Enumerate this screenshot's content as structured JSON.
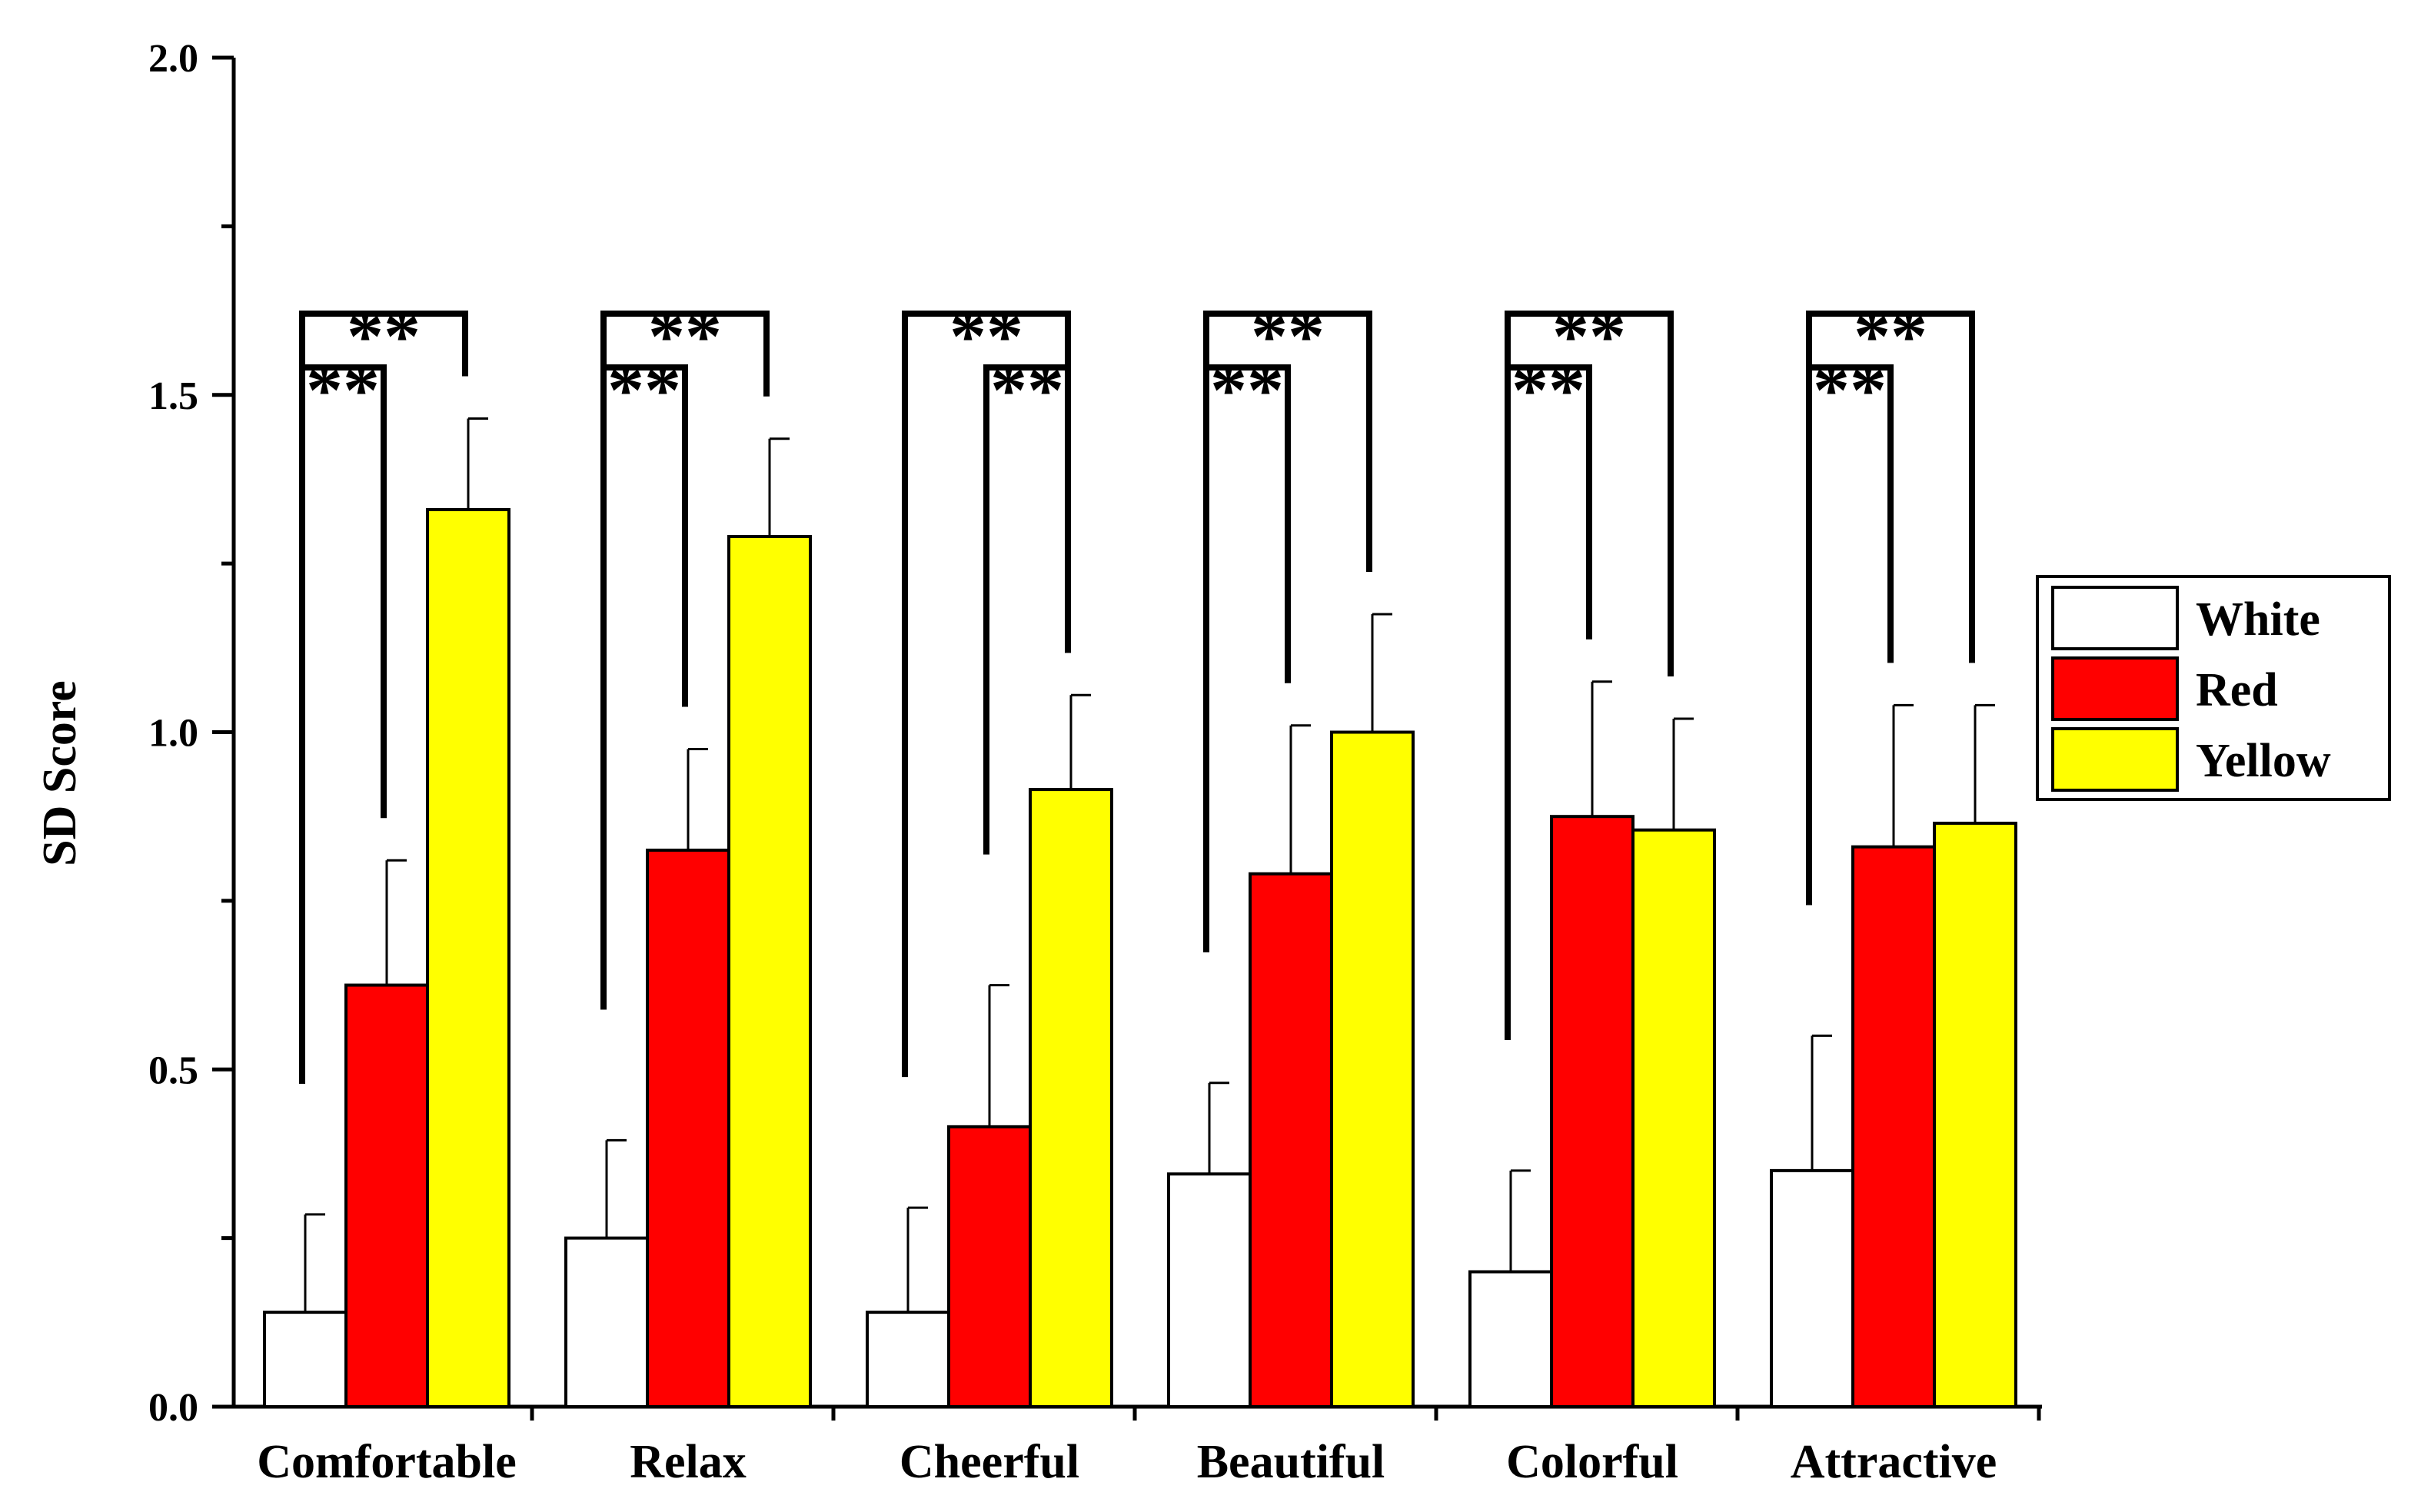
{
  "chart_data": {
    "type": "bar",
    "title": "",
    "xlabel": "",
    "ylabel": "SD Score",
    "ylim": [
      0,
      2.0
    ],
    "yticks": [
      "0.0",
      "0.5",
      "1.0",
      "1.5",
      "2.0"
    ],
    "ytick_values": [
      0,
      0.5,
      1.0,
      1.5,
      2.0
    ],
    "categories": [
      "Comfortable",
      "Relax",
      "Cheerful",
      "Beautiful",
      "Colorful",
      "Attractive"
    ],
    "series": [
      {
        "name": "White",
        "color": "#ffffff",
        "values": [
          0.14,
          0.25,
          0.14,
          0.345,
          0.2,
          0.35
        ],
        "errors": [
          0.145,
          0.145,
          0.155,
          0.135,
          0.15,
          0.2
        ]
      },
      {
        "name": "Red",
        "color": "#ff0000",
        "values": [
          0.625,
          0.825,
          0.415,
          0.79,
          0.875,
          0.83
        ],
        "errors": [
          0.185,
          0.15,
          0.21,
          0.22,
          0.2,
          0.21
        ]
      },
      {
        "name": "Yellow",
        "color": "#ffff00",
        "values": [
          1.33,
          1.29,
          0.915,
          1.0,
          0.855,
          0.865
        ],
        "errors": [
          0.135,
          0.145,
          0.14,
          0.175,
          0.165,
          0.175
        ]
      }
    ],
    "legend": {
      "position": "right",
      "labels": [
        "White",
        "Red",
        "Yellow"
      ]
    },
    "significance": [
      {
        "category": "Comfortable",
        "pairs": [
          {
            "from": "White",
            "to": "Red",
            "label": "**"
          },
          {
            "from": "White",
            "to": "Yellow",
            "label": "**"
          }
        ]
      },
      {
        "category": "Relax",
        "pairs": [
          {
            "from": "White",
            "to": "Red",
            "label": "**"
          },
          {
            "from": "White",
            "to": "Yellow",
            "label": "**"
          }
        ]
      },
      {
        "category": "Cheerful",
        "pairs": [
          {
            "from": "Red",
            "to": "Yellow",
            "label": "**"
          },
          {
            "from": "White",
            "to": "Yellow",
            "label": "**"
          }
        ]
      },
      {
        "category": "Beautiful",
        "pairs": [
          {
            "from": "White",
            "to": "Red",
            "label": "**"
          },
          {
            "from": "White",
            "to": "Yellow",
            "label": "**"
          }
        ]
      },
      {
        "category": "Colorful",
        "pairs": [
          {
            "from": "White",
            "to": "Red",
            "label": "**"
          },
          {
            "from": "White",
            "to": "Yellow",
            "label": "**"
          }
        ]
      },
      {
        "category": "Attractive",
        "pairs": [
          {
            "from": "White",
            "to": "Red",
            "label": "**"
          },
          {
            "from": "White",
            "to": "Yellow",
            "label": "**"
          }
        ]
      }
    ]
  }
}
